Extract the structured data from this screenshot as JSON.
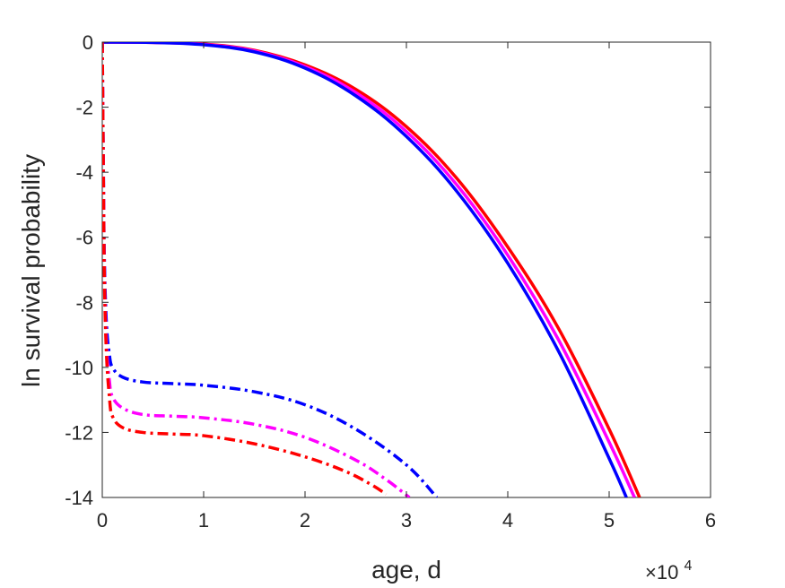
{
  "chart_data": {
    "type": "line",
    "title": "",
    "xlabel": "age, d",
    "ylabel": "ln survival probability",
    "x_exponent_label": "×10",
    "x_exponent_power": "4",
    "xlim": [
      0,
      60000
    ],
    "ylim": [
      -14,
      0
    ],
    "xticks": [
      0,
      10000,
      20000,
      30000,
      40000,
      50000,
      60000
    ],
    "xtick_labels": [
      "0",
      "1",
      "2",
      "3",
      "4",
      "5",
      "6"
    ],
    "yticks": [
      0,
      -2,
      -4,
      -6,
      -8,
      -10,
      -12,
      -14
    ],
    "ytick_labels": [
      "0",
      "-2",
      "-4",
      "-6",
      "-8",
      "-10",
      "-12",
      "-14"
    ],
    "grid": false,
    "legend": "none",
    "series": [
      {
        "color": "#ff0000",
        "style": "solid",
        "x": [
          0,
          5000,
          10000,
          15000,
          20000,
          25000,
          30000,
          35000,
          40000,
          45000,
          50000,
          53000
        ],
        "y": [
          0,
          -0.01,
          -0.06,
          -0.25,
          -0.7,
          -1.45,
          -2.6,
          -4.2,
          -6.3,
          -8.8,
          -11.9,
          -14
        ]
      },
      {
        "color": "#ff00ff",
        "style": "solid",
        "x": [
          0,
          5000,
          10000,
          15000,
          20000,
          25000,
          30000,
          35000,
          40000,
          45000,
          50000,
          52500
        ],
        "y": [
          0,
          -0.01,
          -0.07,
          -0.27,
          -0.75,
          -1.55,
          -2.75,
          -4.4,
          -6.55,
          -9.15,
          -12.3,
          -14
        ]
      },
      {
        "color": "#0000ff",
        "style": "solid",
        "x": [
          0,
          5000,
          10000,
          15000,
          20000,
          25000,
          30000,
          35000,
          40000,
          45000,
          50000,
          51700
        ],
        "y": [
          0,
          -0.01,
          -0.08,
          -0.3,
          -0.8,
          -1.65,
          -2.9,
          -4.6,
          -6.8,
          -9.5,
          -12.8,
          -14
        ]
      },
      {
        "color": "#0000ff",
        "style": "dashdot",
        "x": [
          0,
          100,
          200,
          400,
          700,
          1000,
          2000,
          4000,
          7000,
          10000,
          15000,
          20000,
          25000,
          30000,
          33000
        ],
        "y": [
          0,
          -3.5,
          -6.5,
          -8.6,
          -9.6,
          -10.0,
          -10.3,
          -10.45,
          -10.5,
          -10.55,
          -10.75,
          -11.15,
          -11.9,
          -13.0,
          -14
        ]
      },
      {
        "color": "#ff00ff",
        "style": "dashdot",
        "x": [
          0,
          100,
          200,
          400,
          700,
          1000,
          2000,
          4000,
          7000,
          10000,
          15000,
          20000,
          25000,
          28000,
          30300
        ],
        "y": [
          0,
          -3.7,
          -6.9,
          -9.2,
          -10.4,
          -10.9,
          -11.25,
          -11.45,
          -11.5,
          -11.55,
          -11.75,
          -12.15,
          -12.85,
          -13.45,
          -14
        ]
      },
      {
        "color": "#ff0000",
        "style": "dashdot",
        "x": [
          0,
          100,
          200,
          400,
          700,
          1000,
          2000,
          4000,
          7000,
          10000,
          15000,
          20000,
          24000,
          26500,
          28000
        ],
        "y": [
          0,
          -3.8,
          -7.1,
          -9.5,
          -10.9,
          -11.5,
          -11.85,
          -12.0,
          -12.05,
          -12.1,
          -12.35,
          -12.75,
          -13.2,
          -13.6,
          -13.9
        ]
      }
    ]
  }
}
